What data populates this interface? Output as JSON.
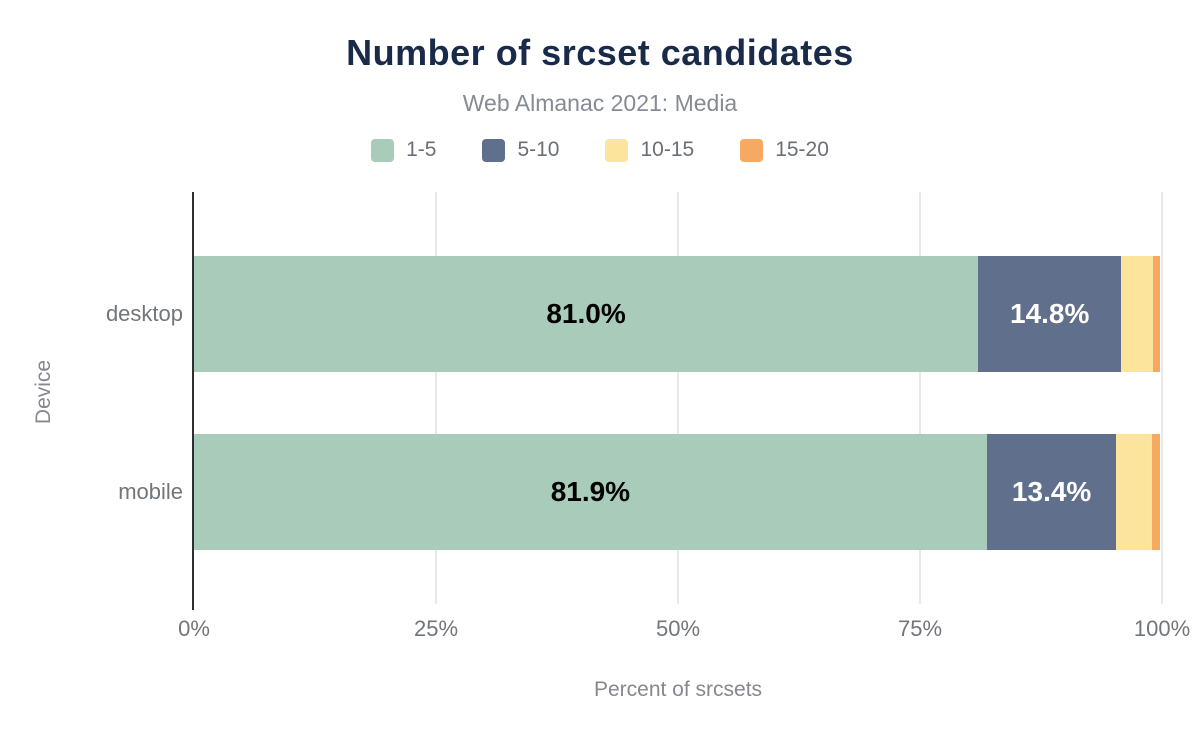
{
  "header": {
    "title": "Number of srcset candidates",
    "subtitle": "Web Almanac 2021: Media"
  },
  "chart_data": {
    "type": "bar",
    "orientation": "horizontal",
    "stacked": true,
    "title": "Number of srcset candidates",
    "subtitle": "Web Almanac 2021: Media",
    "xlabel": "Percent of srcsets",
    "ylabel": "Device",
    "xlim": [
      0,
      100
    ],
    "grid": "vertical",
    "legend_position": "top",
    "categories": [
      "desktop",
      "mobile"
    ],
    "series": [
      {
        "name": "1-5",
        "color": "#a8ccb9",
        "values": [
          81.0,
          81.9
        ],
        "data_labels": [
          "81.0%",
          "81.9%"
        ],
        "label_color": "#000000"
      },
      {
        "name": "5-10",
        "color": "#606f8c",
        "values": [
          14.8,
          13.4
        ],
        "data_labels": [
          "14.8%",
          "13.4%"
        ],
        "label_color": "#ffffff"
      },
      {
        "name": "10-15",
        "color": "#fde49c",
        "values": [
          3.3,
          3.7
        ],
        "data_labels": [
          "",
          ""
        ],
        "label_color": "#000000"
      },
      {
        "name": "15-20",
        "color": "#f5a961",
        "values": [
          0.7,
          0.8
        ],
        "data_labels": [
          "",
          ""
        ],
        "label_color": "#000000"
      }
    ],
    "x_ticks": [
      {
        "label": "0%",
        "value": 0
      },
      {
        "label": "25%",
        "value": 25
      },
      {
        "label": "50%",
        "value": 50
      },
      {
        "label": "75%",
        "value": 75
      },
      {
        "label": "100%",
        "value": 100
      }
    ]
  },
  "colors": {
    "background": "#ffffff",
    "title": "#1a2b49",
    "subtitle": "#858b94",
    "axis_text": "#71767b",
    "axis_line": "#2c3034",
    "gridline": "#e9e9e9"
  }
}
